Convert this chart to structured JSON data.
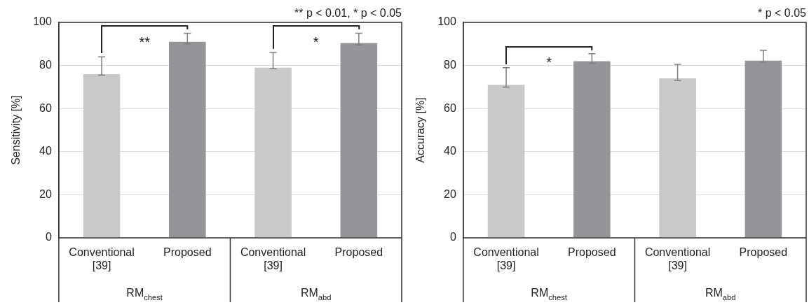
{
  "chart_data": [
    {
      "type": "bar",
      "ylabel": "Sensitivity [%]",
      "categories": [
        "RM$_{chest}$",
        "RM$_{abd}$"
      ],
      "series": [
        {
          "name": "Conventional [39]",
          "color": "#c8c9cb",
          "values": [
            76,
            79
          ],
          "errors": [
            [
              75.5,
              84
            ],
            [
              78.5,
              86
            ]
          ]
        },
        {
          "name": "Proposed",
          "color": "#939598",
          "values": [
            91,
            90.4
          ],
          "errors": [
            [
              90,
              95
            ],
            [
              89.5,
              95
            ]
          ]
        }
      ],
      "ylim": [
        0,
        100
      ],
      "yticks": [
        0,
        20,
        40,
        60,
        80,
        100
      ],
      "grid": "y",
      "annotations": [
        "** p < 0.01, * p < 0.05",
        "**",
        "*"
      ]
    },
    {
      "type": "bar",
      "ylabel": "Accuracy [%]",
      "categories": [
        "RM$_{chest}$",
        "RM$_{abd}$"
      ],
      "series": [
        {
          "name": "Conventional [39]",
          "color": "#c8c9cb",
          "values": [
            71,
            74
          ],
          "errors": [
            [
              70,
              79
            ],
            [
              73,
              80.5
            ]
          ]
        },
        {
          "name": "Proposed",
          "color": "#939598",
          "values": [
            82,
            82.2
          ],
          "errors": [
            [
              81,
              85.5
            ],
            [
              81.5,
              87
            ]
          ]
        }
      ],
      "ylim": [
        0,
        100
      ],
      "yticks": [
        0,
        20,
        40,
        60,
        80,
        100
      ],
      "grid": "y",
      "annotations": [
        "* p < 0.05",
        "*"
      ]
    }
  ]
}
